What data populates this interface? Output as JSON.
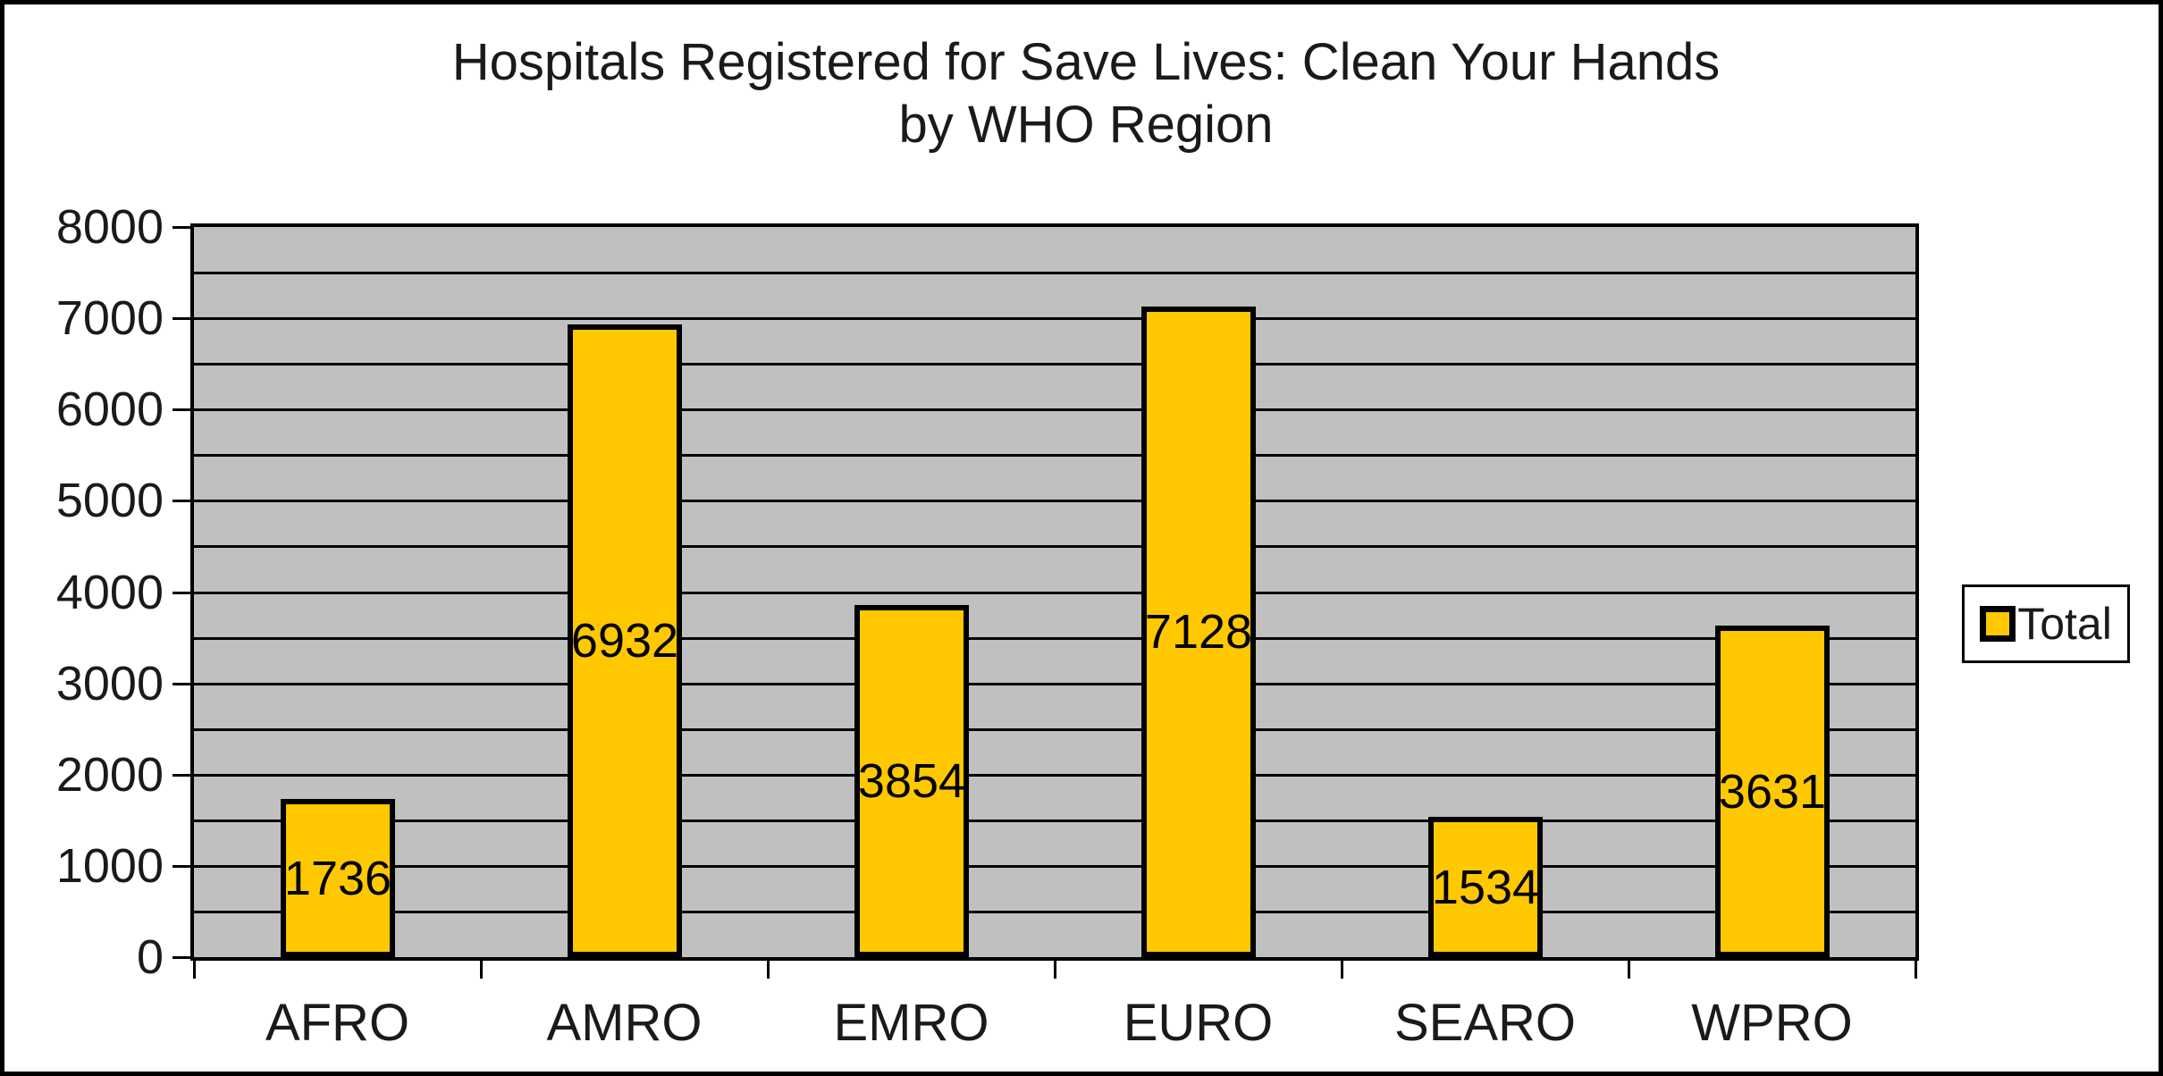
{
  "chart": {
    "title_line1": "Hospitals Registered for Save Lives: Clean Your Hands",
    "title_line2": "by WHO Region",
    "legend_label": "Total"
  },
  "chart_data": {
    "type": "bar",
    "title": "Hospitals Registered for Save Lives: Clean Your Hands by WHO Region",
    "categories": [
      "AFRO",
      "AMRO",
      "EMRO",
      "EURO",
      "SEARO",
      "WPRO"
    ],
    "series": [
      {
        "name": "Total",
        "values": [
          1736,
          6932,
          3854,
          7128,
          1534,
          3631
        ]
      }
    ],
    "show_data_labels": true,
    "data_label_position": "center",
    "xlabel": "",
    "ylabel": "",
    "ylim": [
      0,
      8000
    ],
    "yticks": [
      0,
      1000,
      2000,
      3000,
      4000,
      5000,
      6000,
      7000,
      8000
    ],
    "gridline_step": 500,
    "grid": true,
    "legend_position": "right",
    "colors": {
      "bar_fill": "#FFC800",
      "bar_border": "#000000",
      "plot_bg": "#C0C0C0",
      "grid_color": "#000000",
      "chart_bg": "#FFFFFF",
      "text": "#1A1A1A"
    }
  }
}
